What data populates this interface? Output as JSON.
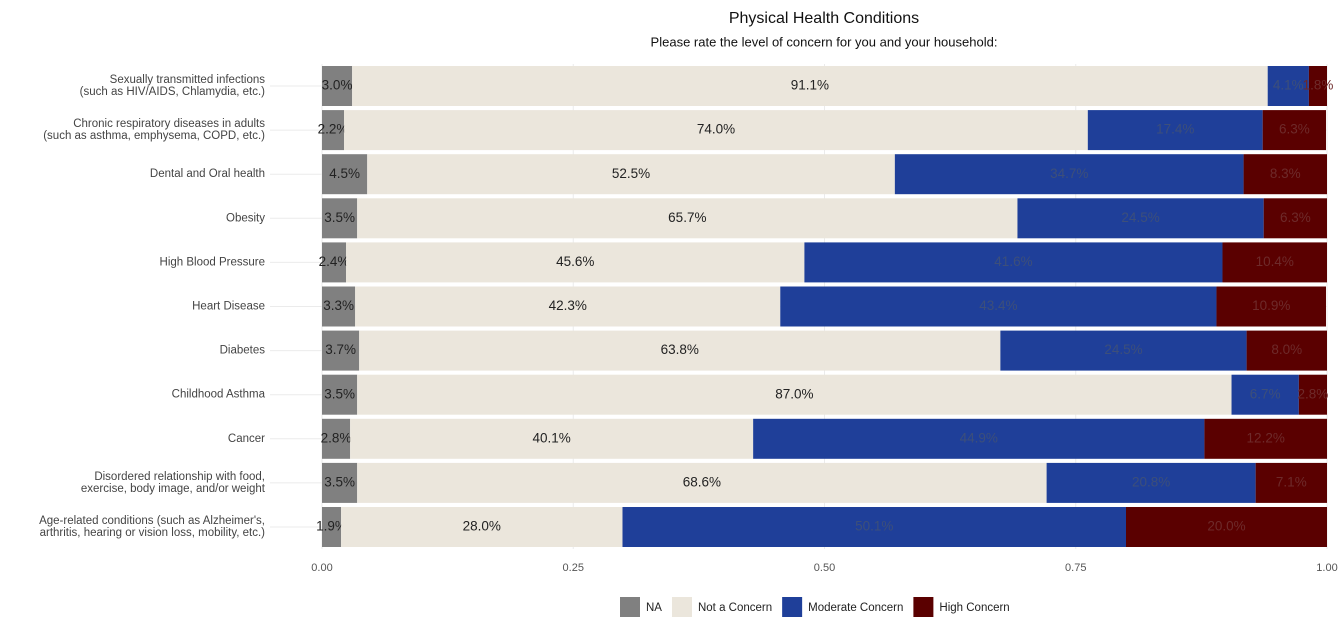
{
  "chart_data": {
    "type": "stacked-barh",
    "title": "Physical Health Conditions",
    "subtitle": "Please rate the level of concern for you and your household:",
    "categories": [
      [
        "Sexually transmitted infections",
        "(such as HIV/AIDS, Chlamydia, etc.)"
      ],
      [
        "Chronic respiratory diseases in adults",
        "(such as asthma, emphysema, COPD, etc.)"
      ],
      [
        "Dental and Oral health"
      ],
      [
        "Obesity"
      ],
      [
        "High Blood Pressure"
      ],
      [
        "Heart Disease"
      ],
      [
        "Diabetes"
      ],
      [
        "Childhood Asthma"
      ],
      [
        "Cancer"
      ],
      [
        "Disordered relationship with food,",
        "exercise, body image, and/or weight"
      ],
      [
        "Age-related conditions (such as Alzheimer's,",
        "arthritis, hearing or vision loss, mobility, etc.)"
      ]
    ],
    "series": [
      {
        "name": "NA",
        "color": "#808080",
        "label_color": "#222222",
        "values": [
          0.03,
          0.022,
          0.045,
          0.035,
          0.024,
          0.033,
          0.037,
          0.035,
          0.028,
          0.035,
          0.019
        ],
        "value_labels": [
          "3.0%",
          "2.2%",
          "4.5%",
          "3.5%",
          "2.4%",
          "3.3%",
          "3.7%",
          "3.5%",
          "2.8%",
          "3.5%",
          "1.9%"
        ]
      },
      {
        "name": "Not a Concern",
        "color": "#ebe6dc",
        "label_color": "#222222",
        "values": [
          0.911,
          0.74,
          0.525,
          0.657,
          0.456,
          0.423,
          0.638,
          0.87,
          0.401,
          0.686,
          0.28
        ],
        "value_labels": [
          "91.1%",
          "74.0%",
          "52.5%",
          "65.7%",
          "45.6%",
          "42.3%",
          "63.8%",
          "87.0%",
          "40.1%",
          "68.6%",
          "28.0%"
        ]
      },
      {
        "name": "Moderate Concern",
        "color": "#1f3f99",
        "label_color": "#3d4f7a",
        "values": [
          0.041,
          0.174,
          0.347,
          0.245,
          0.416,
          0.434,
          0.245,
          0.067,
          0.449,
          0.208,
          0.501
        ],
        "value_labels": [
          "4.1%",
          "17.4%",
          "34.7%",
          "24.5%",
          "41.6%",
          "43.4%",
          "24.5%",
          "6.7%",
          "44.9%",
          "20.8%",
          "50.1%"
        ]
      },
      {
        "name": "High Concern",
        "color": "#5a0000",
        "label_color": "#6e2a2a",
        "values": [
          0.018,
          0.063,
          0.083,
          0.063,
          0.104,
          0.109,
          0.08,
          0.028,
          0.122,
          0.071,
          0.2
        ],
        "value_labels": [
          "1.8%",
          "6.3%",
          "8.3%",
          "6.3%",
          "10.4%",
          "10.9%",
          "8.0%",
          "2.8%",
          "12.2%",
          "7.1%",
          "20.0%"
        ]
      }
    ],
    "xlim": [
      0,
      1
    ],
    "xticks": [
      {
        "value": 0,
        "label": "0.00"
      },
      0.25,
      {
        "value": 0.5,
        "label": "0.50"
      },
      0.75,
      {
        "value": 1,
        "label": "1.00"
      }
    ],
    "grid": true,
    "legend": "bottom"
  }
}
